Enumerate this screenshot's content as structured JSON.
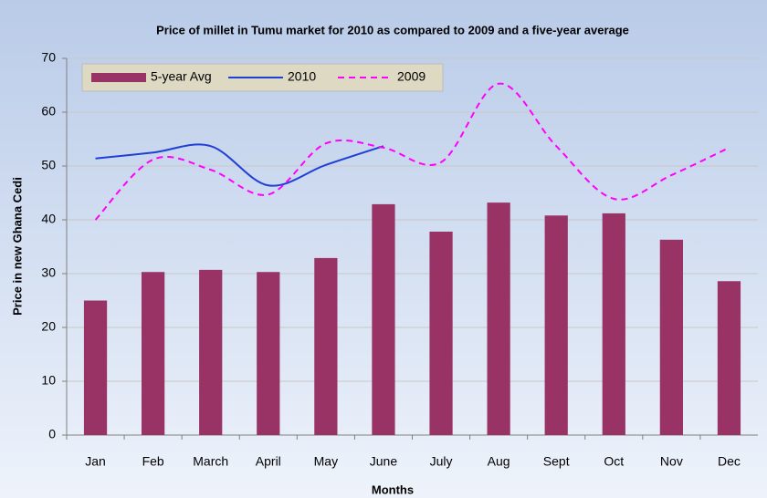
{
  "chart_data": {
    "type": "bar",
    "title": "Price of millet in Tumu market for 2010 as compared to 2009 and a five-year average",
    "x_label": "Months",
    "y_label": "Price in new Ghana Cedi",
    "categories": [
      "Jan",
      "Feb",
      "March",
      "April",
      "May",
      "June",
      "July",
      "Aug",
      "Sept",
      "Oct",
      "Nov",
      "Dec"
    ],
    "series": [
      {
        "name": "5-year Avg",
        "type": "bar",
        "color": "#993366",
        "values": [
          25,
          30.3,
          30.7,
          30.3,
          32.9,
          42.9,
          37.8,
          43.2,
          40.8,
          41.2,
          36.3,
          28.6
        ]
      },
      {
        "name": "2010",
        "type": "line",
        "color": "#1f3fd6",
        "values": [
          51.4,
          52.5,
          53.7,
          46.4,
          50.2,
          53.7,
          null,
          null,
          null,
          null,
          null,
          null
        ]
      },
      {
        "name": "2009",
        "type": "line",
        "dashed": true,
        "color": "#ff00ff",
        "values": [
          40,
          51.2,
          49.3,
          44.7,
          54.2,
          53.4,
          50.7,
          65.3,
          53.7,
          43.9,
          48.3,
          53.4
        ]
      }
    ],
    "ylim": [
      0,
      70
    ],
    "yticks": [
      0,
      10,
      20,
      30,
      40,
      50,
      60,
      70
    ],
    "grid": true,
    "legend": "top-left"
  }
}
